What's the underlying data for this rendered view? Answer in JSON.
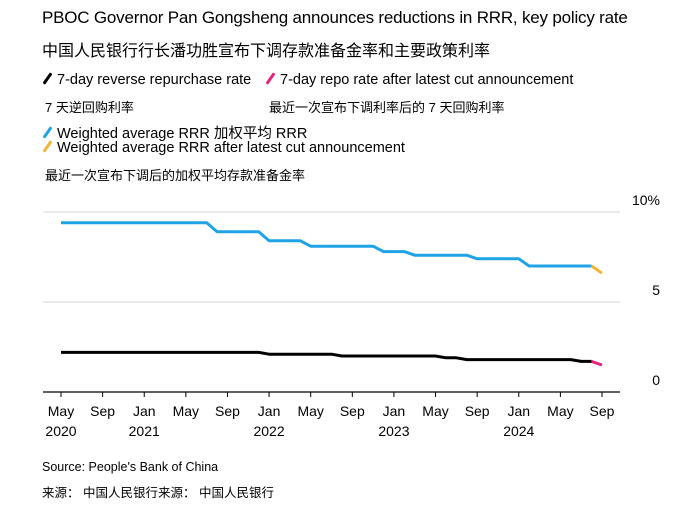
{
  "header": {
    "title": "PBOC Governor Pan Gongsheng announces reductions in RRR, key policy rate",
    "subtitle_cn": "中国人民银行行长潘功胜宣布下调存款准备金率和主要政策利率"
  },
  "legend": [
    {
      "label": "7-day reverse repurchase rate",
      "label_cn": "7 天逆回购利率",
      "color": "#000000"
    },
    {
      "label": "7-day repo rate after latest cut announcement",
      "label_cn": "最近一次宣布下调利率后的 7 天回购利率",
      "color": "#e8237f"
    },
    {
      "label": "Weighted average RRR 加权平均 RRR",
      "label_cn": "",
      "color": "#1fa3e6"
    },
    {
      "label": "Weighted average RRR after latest cut announcement",
      "label_cn": "最近一次宣布下调后的加权平均存款准备金率",
      "color": "#f2b533"
    }
  ],
  "footer": {
    "source": "Source: People's Bank of China",
    "source_cn": "来源： 中国人民银行来源： 中国人民银行"
  },
  "chart_data": {
    "type": "line",
    "title": "PBOC Governor Pan Gongsheng announces reductions in RRR, key policy rate",
    "xlabel": "",
    "ylabel": "%",
    "ylim": [
      0,
      10
    ],
    "xlim": [
      "2020-04",
      "2024-12"
    ],
    "grid": true,
    "legend_position": "top-left",
    "y_ticks": [
      {
        "value": 10,
        "label": "10%"
      },
      {
        "value": 5,
        "label": "5"
      },
      {
        "value": 0,
        "label": "0"
      }
    ],
    "x_ticks": [
      {
        "date": "2020-05",
        "label": "May",
        "year": "2020"
      },
      {
        "date": "2020-09",
        "label": "Sep",
        "year": ""
      },
      {
        "date": "2021-01",
        "label": "Jan",
        "year": "2021"
      },
      {
        "date": "2021-05",
        "label": "May",
        "year": ""
      },
      {
        "date": "2021-09",
        "label": "Sep",
        "year": ""
      },
      {
        "date": "2022-01",
        "label": "Jan",
        "year": "2022"
      },
      {
        "date": "2022-05",
        "label": "May",
        "year": ""
      },
      {
        "date": "2022-09",
        "label": "Sep",
        "year": ""
      },
      {
        "date": "2023-01",
        "label": "Jan",
        "year": "2023"
      },
      {
        "date": "2023-05",
        "label": "May",
        "year": ""
      },
      {
        "date": "2023-09",
        "label": "Sep",
        "year": ""
      },
      {
        "date": "2024-01",
        "label": "Jan",
        "year": "2024"
      },
      {
        "date": "2024-05",
        "label": "May",
        "year": ""
      },
      {
        "date": "2024-09",
        "label": "Sep",
        "year": ""
      }
    ],
    "series": [
      {
        "name": "Weighted average RRR",
        "color": "#1fa3e6",
        "points": [
          [
            "2020-05",
            9.4
          ],
          [
            "2021-07",
            9.4
          ],
          [
            "2021-08",
            8.9
          ],
          [
            "2021-12",
            8.9
          ],
          [
            "2022-01",
            8.4
          ],
          [
            "2022-04",
            8.4
          ],
          [
            "2022-05",
            8.1
          ],
          [
            "2022-11",
            8.1
          ],
          [
            "2022-12",
            7.8
          ],
          [
            "2023-02",
            7.8
          ],
          [
            "2023-03",
            7.6
          ],
          [
            "2023-08",
            7.6
          ],
          [
            "2023-09",
            7.4
          ],
          [
            "2024-01",
            7.4
          ],
          [
            "2024-02",
            7.0
          ],
          [
            "2024-08",
            7.0
          ]
        ]
      },
      {
        "name": "Weighted average RRR after latest cut announcement",
        "color": "#f2b533",
        "points": [
          [
            "2024-08",
            7.0
          ],
          [
            "2024-09",
            6.6
          ]
        ]
      },
      {
        "name": "7-day reverse repurchase rate",
        "color": "#000000",
        "points": [
          [
            "2020-05",
            2.2
          ],
          [
            "2021-12",
            2.2
          ],
          [
            "2022-01",
            2.1
          ],
          [
            "2022-07",
            2.1
          ],
          [
            "2022-08",
            2.0
          ],
          [
            "2023-05",
            2.0
          ],
          [
            "2023-06",
            1.9
          ],
          [
            "2023-07",
            1.9
          ],
          [
            "2023-08",
            1.8
          ],
          [
            "2024-06",
            1.8
          ],
          [
            "2024-07",
            1.7
          ],
          [
            "2024-08",
            1.7
          ]
        ]
      },
      {
        "name": "7-day repo rate after latest cut announcement",
        "color": "#e8237f",
        "points": [
          [
            "2024-08",
            1.7
          ],
          [
            "2024-09",
            1.5
          ]
        ]
      }
    ]
  }
}
